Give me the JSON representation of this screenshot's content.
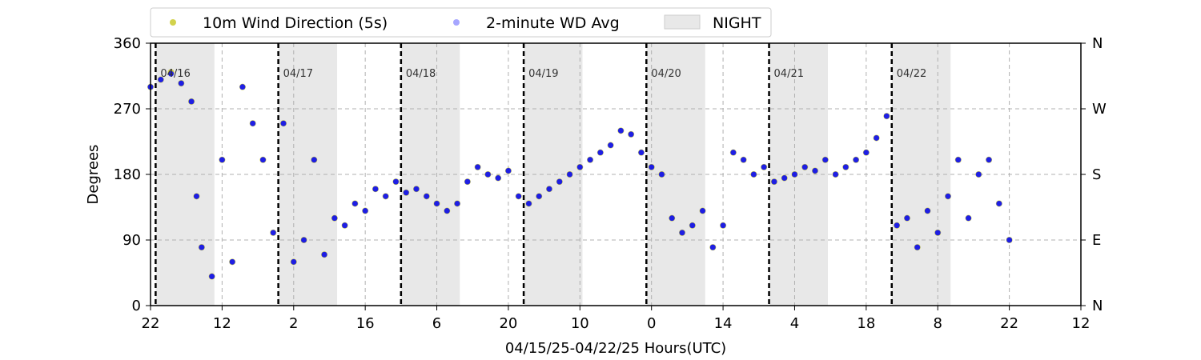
{
  "chart_data": {
    "type": "scatter",
    "title": "",
    "xlabel": "04/15/25-04/22/25  Hours(UTC)",
    "ylabel": "Degrees",
    "ylim": [
      0,
      360
    ],
    "xlim": [
      0,
      182
    ],
    "x_ticks": [
      {
        "x": 0,
        "label": "22"
      },
      {
        "x": 14,
        "label": "12"
      },
      {
        "x": 28,
        "label": "2"
      },
      {
        "x": 42,
        "label": "16"
      },
      {
        "x": 56,
        "label": "6"
      },
      {
        "x": 70,
        "label": "20"
      },
      {
        "x": 84,
        "label": "10"
      },
      {
        "x": 98,
        "label": "0"
      },
      {
        "x": 112,
        "label": "14"
      },
      {
        "x": 126,
        "label": "4"
      },
      {
        "x": 140,
        "label": "18"
      },
      {
        "x": 154,
        "label": "8"
      },
      {
        "x": 168,
        "label": "22"
      },
      {
        "x": 182,
        "label": "12"
      }
    ],
    "y_ticks": [
      0,
      90,
      180,
      270,
      360
    ],
    "y2_ticks": [
      {
        "y": 0,
        "label": "N"
      },
      {
        "y": 90,
        "label": "E"
      },
      {
        "y": 180,
        "label": "S"
      },
      {
        "y": 270,
        "label": "W"
      },
      {
        "y": 360,
        "label": "N"
      }
    ],
    "grid": true,
    "legend_position": "top-center",
    "legend": [
      "10m Wind Direction (5s)",
      "2-minute WD Avg",
      "NIGHT"
    ],
    "colors": {
      "wind_5s": "#bfbf00",
      "wd_avg": "#0000ff",
      "night": "#e8e8e8",
      "midnight": "#000000"
    },
    "day_markers": [
      {
        "x": 1,
        "label": "04/16"
      },
      {
        "x": 25,
        "label": "04/17"
      },
      {
        "x": 49,
        "label": "04/18"
      },
      {
        "x": 73,
        "label": "04/19"
      },
      {
        "x": 97,
        "label": "04/20"
      },
      {
        "x": 121,
        "label": "04/21"
      },
      {
        "x": 145,
        "label": "04/22"
      }
    ],
    "night_periods": [
      [
        1,
        12.5
      ],
      [
        25,
        36.5
      ],
      [
        49,
        60.5
      ],
      [
        73,
        84.5
      ],
      [
        97,
        108.5
      ],
      [
        121,
        132.5
      ],
      [
        145,
        156.5
      ]
    ],
    "series": [
      {
        "name": "10m Wind Direction (5s)",
        "x": [
          0,
          2,
          4,
          6,
          8,
          9,
          10,
          12,
          14,
          16,
          18,
          20,
          22,
          24,
          26,
          28,
          30,
          32,
          34,
          36,
          38,
          40,
          42,
          44,
          46,
          48,
          50,
          52,
          54,
          56,
          58,
          60,
          62,
          64,
          66,
          68,
          70,
          72,
          74,
          76,
          78,
          80,
          82,
          84,
          86,
          88,
          90,
          92,
          94,
          96,
          98,
          100,
          102,
          104,
          106,
          108,
          110,
          112,
          114,
          116,
          118,
          120,
          122,
          124,
          126,
          128,
          130,
          132,
          134,
          136,
          138,
          140,
          142,
          144,
          146,
          148,
          150,
          152,
          154,
          156,
          158,
          160,
          162,
          164,
          166,
          168
        ],
        "y": [
          300,
          310,
          320,
          305,
          280,
          150,
          80,
          40,
          200,
          60,
          300,
          250,
          200,
          100,
          250,
          60,
          90,
          200,
          70,
          120,
          110,
          140,
          130,
          160,
          150,
          170,
          155,
          160,
          150,
          140,
          130,
          140,
          170,
          190,
          180,
          175,
          185,
          150,
          140,
          150,
          160,
          170,
          180,
          190,
          200,
          210,
          220,
          240,
          235,
          210,
          190,
          180,
          120,
          100,
          110,
          130,
          80,
          110,
          210,
          200,
          180,
          190,
          170,
          175,
          180,
          190,
          185,
          200,
          180,
          190,
          200,
          210,
          230,
          260,
          110,
          120,
          80,
          130,
          100,
          150,
          200,
          120,
          180,
          200,
          140,
          90
        ]
      },
      {
        "name": "2-minute WD Avg",
        "x": [
          0,
          2,
          4,
          6,
          8,
          9,
          10,
          12,
          14,
          16,
          18,
          20,
          22,
          24,
          26,
          28,
          30,
          32,
          34,
          36,
          38,
          40,
          42,
          44,
          46,
          48,
          50,
          52,
          54,
          56,
          58,
          60,
          62,
          64,
          66,
          68,
          70,
          72,
          74,
          76,
          78,
          80,
          82,
          84,
          86,
          88,
          90,
          92,
          94,
          96,
          98,
          100,
          102,
          104,
          106,
          108,
          110,
          112,
          114,
          116,
          118,
          120,
          122,
          124,
          126,
          128,
          130,
          132,
          134,
          136,
          138,
          140,
          142,
          144,
          146,
          148,
          150,
          152,
          154,
          156,
          158,
          160,
          162,
          164,
          166,
          168
        ],
        "y": [
          300,
          310,
          318,
          305,
          280,
          150,
          80,
          40,
          200,
          60,
          300,
          250,
          200,
          100,
          250,
          60,
          90,
          200,
          70,
          120,
          110,
          140,
          130,
          160,
          150,
          170,
          155,
          160,
          150,
          140,
          130,
          140,
          170,
          190,
          180,
          175,
          185,
          150,
          140,
          150,
          160,
          170,
          180,
          190,
          200,
          210,
          220,
          240,
          235,
          210,
          190,
          180,
          120,
          100,
          110,
          130,
          80,
          110,
          210,
          200,
          180,
          190,
          170,
          175,
          180,
          190,
          185,
          200,
          180,
          190,
          200,
          210,
          230,
          260,
          110,
          120,
          80,
          130,
          100,
          150,
          200,
          120,
          180,
          200,
          140,
          90
        ]
      }
    ]
  }
}
